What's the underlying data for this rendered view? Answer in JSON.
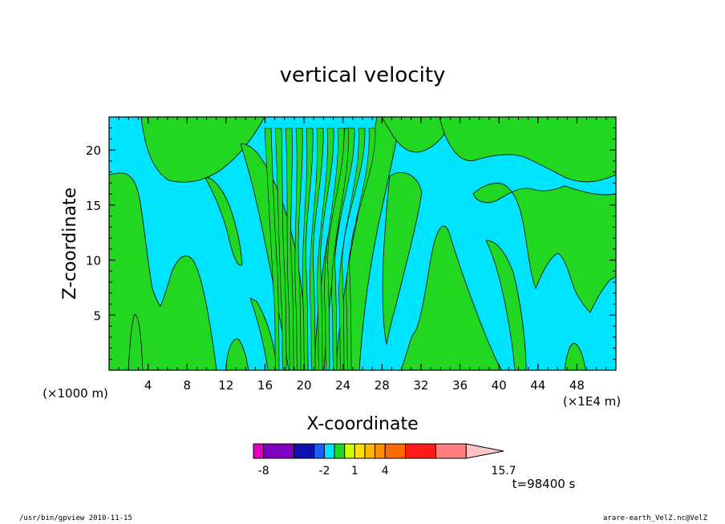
{
  "chart_data": {
    "type": "heatmap",
    "title": "vertical velocity",
    "xlabel": "X-coordinate",
    "ylabel": "Z-coordinate",
    "x_scale_note": "(×1E4 m)",
    "y_scale_note": "(×1000 m)",
    "xlim": [
      0,
      52
    ],
    "ylim": [
      0,
      23
    ],
    "x_ticks": [
      "4",
      "8",
      "12",
      "16",
      "20",
      "24",
      "28",
      "32",
      "36",
      "40",
      "44",
      "48"
    ],
    "y_ticks": [
      "5",
      "10",
      "15",
      "20"
    ],
    "time_label": "t=98400 s",
    "colorbar": {
      "bins": [
        -9,
        -8,
        -5,
        -3,
        -2,
        -1,
        0,
        1,
        2,
        3,
        4,
        6,
        9,
        12,
        15.7
      ],
      "colors": [
        "#e400bd",
        "#8000c0",
        "#1010b0",
        "#1860ff",
        "#00e5ff",
        "#22d722",
        "#d8ff00",
        "#ffe000",
        "#ffb800",
        "#ff9000",
        "#ff6a00",
        "#ff1a1a",
        "#ff7f7f",
        "#ffc4c4"
      ],
      "labels": [
        "-8",
        "-2",
        "1",
        "4",
        "15.7"
      ]
    },
    "legend": "bottom",
    "fill_colors": {
      "background": "#00e5ff",
      "positive": "#22d722"
    }
  },
  "footer": {
    "left": "/usr/bin/gpview  2010-11-15",
    "right": "arare-earth_VelZ.nc@VelZ"
  }
}
